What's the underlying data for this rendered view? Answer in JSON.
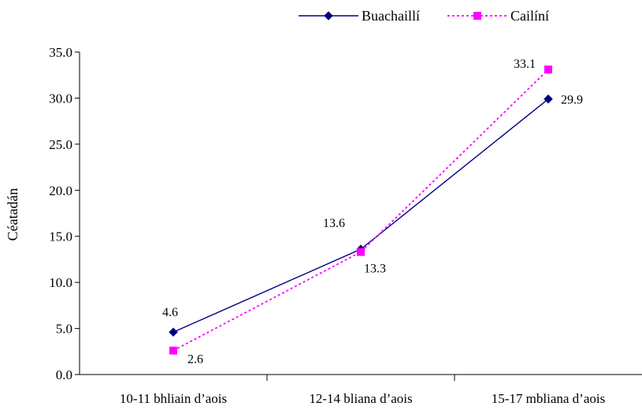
{
  "chart_data": {
    "type": "line",
    "title": "",
    "xlabel": "",
    "ylabel": "Céatadán",
    "categories": [
      "10-11 bhliain d’aois",
      "12-14 bliana d’aois",
      "15-17 mbliana d’aois"
    ],
    "ylim": [
      0,
      35
    ],
    "yticks": [
      "0.0",
      "5.0",
      "10.0",
      "15.0",
      "20.0",
      "25.0",
      "30.0",
      "35.0"
    ],
    "grid": false,
    "legend_position": "top",
    "series": [
      {
        "name": "Buachaillí",
        "values": [
          4.6,
          13.6,
          29.9
        ],
        "labels": [
          "4.6",
          "13.6",
          "29.9"
        ],
        "color": "#000080",
        "line_style": "solid",
        "marker": "diamond"
      },
      {
        "name": "Cailíní",
        "values": [
          2.6,
          13.3,
          33.1
        ],
        "labels": [
          "2.6",
          "13.3",
          "33.1"
        ],
        "color": "#FF00FF",
        "line_style": "dotted",
        "marker": "square"
      }
    ]
  }
}
